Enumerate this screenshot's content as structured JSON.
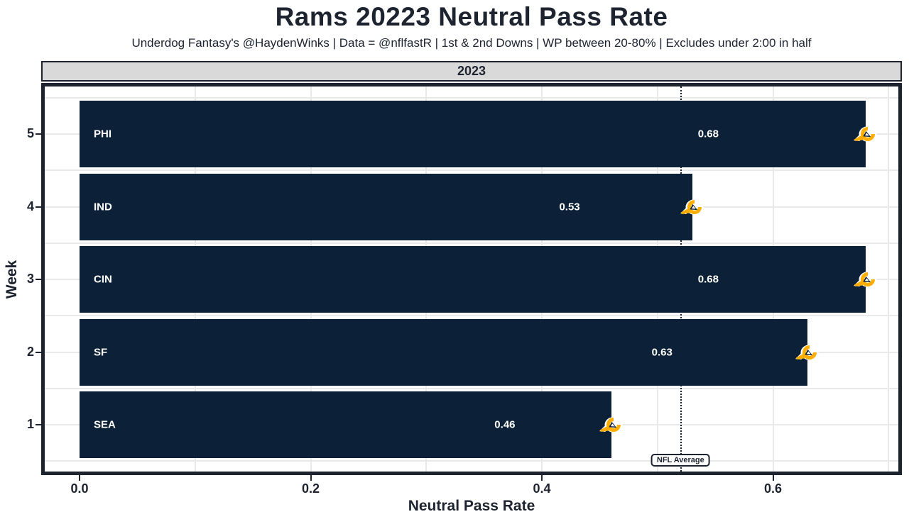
{
  "header": {
    "title": "Rams 20223 Neutral Pass Rate",
    "subtitle": "Underdog Fantasy's @HaydenWinks | Data = @nflfastR | 1st & 2nd Downs | WP between 20-80% | Excludes under 2:00 in half"
  },
  "facet_label": "2023",
  "chart_data": {
    "type": "bar",
    "orientation": "horizontal",
    "title": "Rams 20223 Neutral Pass Rate",
    "xlabel": "Neutral Pass Rate",
    "ylabel": "Week",
    "xlim": [
      0,
      0.71
    ],
    "x_ticks": {
      "values": [
        0.0,
        0.2,
        0.4,
        0.6
      ],
      "labels": [
        "0.0",
        "0.2",
        "0.4",
        "0.6"
      ]
    },
    "grid": true,
    "legend": "none",
    "facet": "2023",
    "bars": [
      {
        "week": "5",
        "opponent": "PHI",
        "value": 0.68,
        "label": "0.68"
      },
      {
        "week": "4",
        "opponent": "IND",
        "value": 0.53,
        "label": "0.53"
      },
      {
        "week": "3",
        "opponent": "CIN",
        "value": 0.68,
        "label": "0.68"
      },
      {
        "week": "2",
        "opponent": "SF",
        "value": 0.63,
        "label": "0.63"
      },
      {
        "week": "1",
        "opponent": "SEA",
        "value": 0.46,
        "label": "0.46"
      }
    ],
    "reference_line": {
      "label": "NFL Average",
      "value": 0.52
    }
  },
  "colors": {
    "bar_navy": "#0c2137",
    "gold": "#ffae00",
    "text": "#1d2430",
    "grid": "#e9e9e9",
    "strip_fill": "#d9d9d9",
    "white": "#ffffff"
  }
}
